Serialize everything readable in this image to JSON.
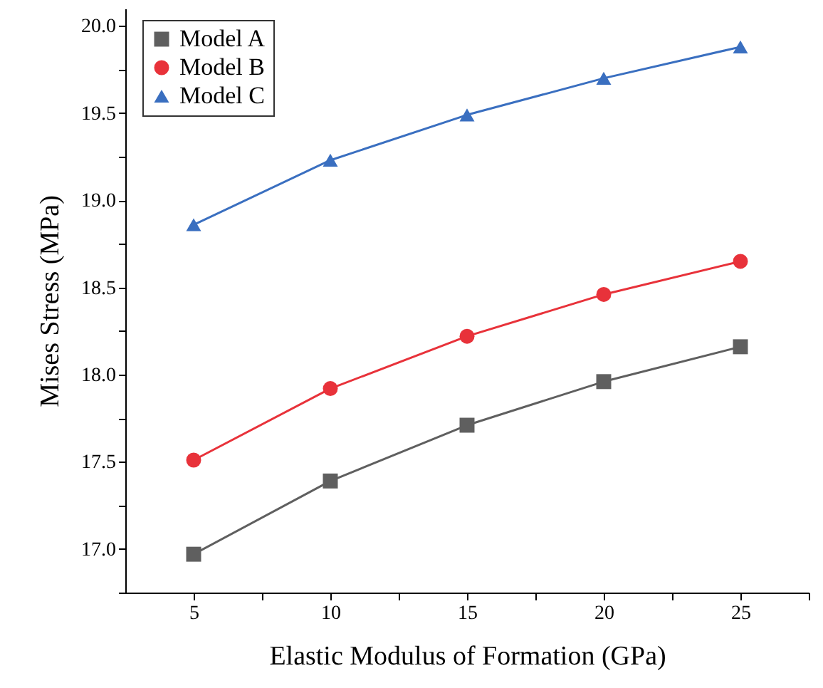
{
  "chart_data": {
    "type": "line",
    "xlabel": "Elastic Modulus of Formation (GPa)",
    "ylabel": "Mises Stress (MPa)",
    "x": [
      5,
      10,
      15,
      20,
      25
    ],
    "series": [
      {
        "name": "Model A",
        "color": "#5f5f5f",
        "marker": "square",
        "values": [
          16.97,
          17.39,
          17.71,
          17.96,
          18.16
        ]
      },
      {
        "name": "Model B",
        "color": "#e8323a",
        "marker": "circle",
        "values": [
          17.51,
          17.92,
          18.22,
          18.46,
          18.65
        ]
      },
      {
        "name": "Model C",
        "color": "#3a6fc0",
        "marker": "triangle",
        "values": [
          18.86,
          19.23,
          19.49,
          19.7,
          19.88
        ]
      }
    ],
    "xlim": [
      2.5,
      27.5
    ],
    "xticks": [
      5,
      {
        "value": 7.5,
        "label": null
      },
      10,
      {
        "value": 12.5,
        "label": null
      },
      15,
      {
        "value": 17.5,
        "label": null
      },
      20,
      {
        "value": 22.5,
        "label": null
      },
      25,
      {
        "value": 27.5,
        "label": null
      }
    ],
    "ylim": [
      16.75,
      20.1
    ],
    "yticks": [
      {
        "value": 16.75,
        "label": null
      },
      {
        "value": 17,
        "label": "17.0"
      },
      {
        "value": 17.25,
        "label": null
      },
      {
        "value": 17.5,
        "label": "17.5"
      },
      {
        "value": 17.75,
        "label": null
      },
      {
        "value": 18,
        "label": "18.0"
      },
      {
        "value": 18.25,
        "label": null
      },
      {
        "value": 18.5,
        "label": "18.5"
      },
      {
        "value": 18.75,
        "label": null
      },
      {
        "value": 19,
        "label": "19.0"
      },
      {
        "value": 19.25,
        "label": null
      },
      {
        "value": 19.5,
        "label": "19.5"
      },
      {
        "value": 19.75,
        "label": null
      },
      {
        "value": 20,
        "label": "20.0"
      }
    ],
    "legend": "top left",
    "grid": false,
    "line_style": "solid"
  }
}
